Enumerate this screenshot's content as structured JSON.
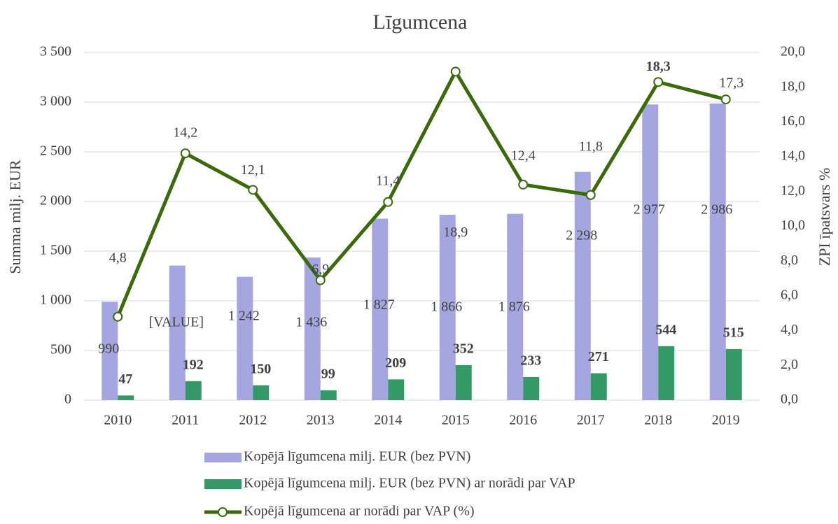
{
  "chart_data": {
    "type": "bar_line",
    "title": "Līgumcena",
    "y_label": "Summa milj. EUR",
    "y2_label": "ZPI īpatsvars %",
    "categories": [
      "2010",
      "2011",
      "2012",
      "2013",
      "2014",
      "2015",
      "2016",
      "2017",
      "2018",
      "2019"
    ],
    "ylim": [
      0,
      3500
    ],
    "yticks": [
      0,
      500,
      {
        "value": 1000,
        "label": "1 000"
      },
      {
        "value": 1500,
        "label": "1 500"
      },
      {
        "value": 2000,
        "label": "2 000"
      },
      {
        "value": 2500,
        "label": "2 500"
      },
      {
        "value": 3000,
        "label": "3 000"
      },
      {
        "value": 3500,
        "label": "3 500"
      }
    ],
    "y2lim": [
      0,
      20
    ],
    "y2ticks": [
      {
        "value": 0,
        "label": "0,0"
      },
      {
        "value": 2,
        "label": "2,0"
      },
      {
        "value": 4,
        "label": "4,0"
      },
      {
        "value": 6,
        "label": "6,0"
      },
      {
        "value": 8,
        "label": "8,0"
      },
      {
        "value": 10,
        "label": "10,0"
      },
      {
        "value": 12,
        "label": "12,0"
      },
      {
        "value": 14,
        "label": "14,0"
      },
      {
        "value": 16,
        "label": "16,0"
      },
      {
        "value": 18,
        "label": "18,0"
      },
      {
        "value": 20,
        "label": "20,0"
      }
    ],
    "grid": true,
    "series": [
      {
        "name": "Kopējā līgumcena milj. EUR (bez PVN)",
        "type": "bar",
        "color": "#a5a5e0",
        "values": [
          990,
          1355,
          1242,
          1436,
          1827,
          1866,
          1876,
          2298,
          2977,
          2986
        ],
        "value_labels": [
          "990",
          "[VALUE]",
          "1 242",
          "1 436",
          "1 827",
          "1 866",
          "1 876",
          "2 298",
          "2 977",
          "2 986"
        ]
      },
      {
        "name": "Kopējā līgumcena milj. EUR (bez PVN) ar norādi par VAP",
        "type": "bar",
        "color": "#339966",
        "values": [
          47,
          192,
          150,
          99,
          209,
          352,
          233,
          271,
          544,
          515
        ]
      },
      {
        "name": "Kopējā līgumcena ar norādi par VAP (%)",
        "type": "line",
        "axis": "y2",
        "color": "#3a6b0a",
        "values": [
          4.8,
          14.2,
          12.1,
          6.9,
          11.4,
          18.9,
          12.4,
          11.8,
          18.3,
          17.3
        ],
        "value_labels": [
          "4,8",
          "14,2",
          "12,1",
          "6,9",
          "11,4",
          "18,9",
          "12,4",
          "11,8",
          "18,3",
          "17,3"
        ]
      }
    ]
  }
}
